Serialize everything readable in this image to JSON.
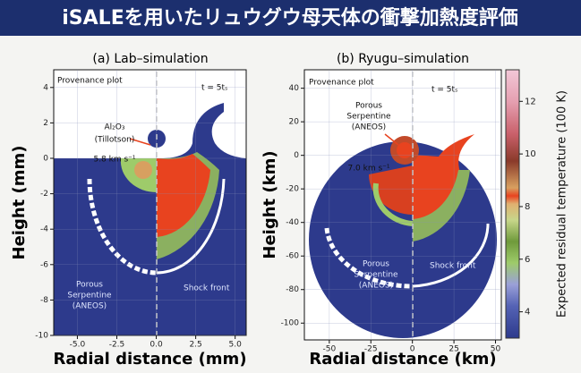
{
  "header": {
    "title": "iSALEを用いたリュウグウ母天体の衝撃加熱度評価"
  },
  "panels": [
    {
      "title": "(a) Lab–simulation",
      "ylabel": "Height (mm)",
      "xlabel": "Radial distance (mm)",
      "xlim": [
        -6.5,
        5.7
      ],
      "ylim": [
        -10,
        5
      ],
      "xticks": [
        {
          "value": -5,
          "label": "-5.0"
        },
        {
          "value": -2.5,
          "label": "-2.5"
        },
        {
          "value": 0,
          "label": "0.0"
        },
        {
          "value": 2.5,
          "label": "2.5"
        },
        {
          "value": 5,
          "label": "5.0"
        }
      ],
      "yticks": [
        4,
        2,
        0,
        -2,
        -4,
        -6,
        -8,
        -10
      ],
      "annotations": [
        "Provenance plot",
        "t = 5tₛ",
        "Al₂O₃",
        "(Tillotson)",
        "5.8 km s⁻¹",
        "Porous",
        "Serpentine",
        "(ANEOS)",
        "Shock front"
      ]
    },
    {
      "title": "(b) Ryugu–simulation",
      "ylabel": "Height (km)",
      "xlabel": "Radial distance (km)",
      "xlim": [
        -65,
        53.5
      ],
      "ylim": [
        -110,
        51
      ],
      "xticks": [
        -50,
        -25,
        0,
        25,
        50
      ],
      "yticks": [
        40,
        20,
        0,
        -20,
        -40,
        -60,
        -80,
        -100
      ],
      "annotations": [
        "Provenance plot",
        "t = 5tₛ",
        "Porous",
        "Serpentine",
        "(ANEOS)",
        "7.0 km s⁻¹",
        "Porous",
        "Serpentine",
        "(ANEOS)",
        "Shock front"
      ]
    }
  ],
  "colorbar": {
    "label": "Expected residual temperature (100 K)",
    "lim": [
      3,
      13.2
    ],
    "ticks": [
      4,
      6,
      8,
      10,
      12
    ]
  }
}
